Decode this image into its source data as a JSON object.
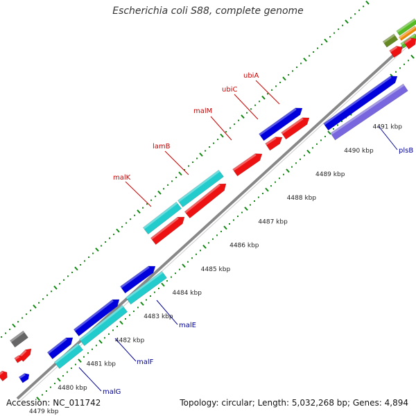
{
  "header": {
    "title": "Escherichia coli S88, complete genome"
  },
  "footer": {
    "accession": "Accession: NC_011742",
    "stats": "Topology: circular; Length: 5,032,268 bp; Genes: 4,894"
  },
  "scale": {
    "labels": [
      "4479 kbp",
      "4480 kbp",
      "4481 kbp",
      "4482 kbp",
      "4483 kbp",
      "4484 kbp",
      "4485 kbp",
      "4486 kbp",
      "4487 kbp",
      "4488 kbp",
      "4489 kbp",
      "4490 kbp",
      "4491 kbp"
    ]
  },
  "genes": {
    "top": [
      "malK",
      "lamB",
      "malM",
      "ubiC",
      "ubiA"
    ],
    "bottom": [
      "malG",
      "malF",
      "malE",
      "plsB"
    ]
  },
  "colors": {
    "blue": "#0000dd",
    "cyan": "#22cccc",
    "red": "#ee1111",
    "purple": "#7766dd",
    "grey": "#777777",
    "green_tick": "#118811",
    "olive": "#668822",
    "orange": "#ee8800",
    "green": "#55bb22"
  }
}
